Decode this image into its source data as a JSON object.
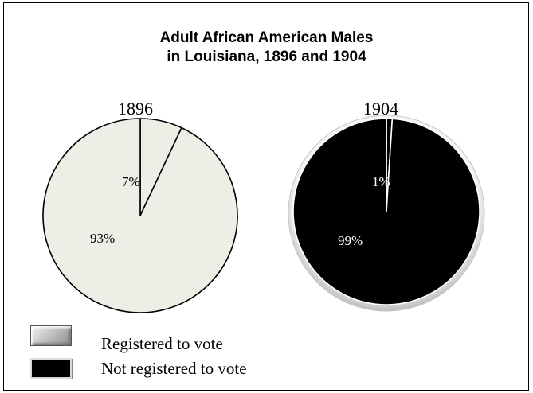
{
  "chart_data": [
    {
      "type": "pie",
      "title": "Adult African American Males\nin Louisiana, 1896 and 1904",
      "subtitle": "1896",
      "categories": [
        "Registered to vote",
        "Not registered to vote"
      ],
      "values": [
        7,
        93
      ],
      "labels": [
        "7%",
        "93%"
      ],
      "colors": [
        "#eeeee6",
        "#eeeee6"
      ],
      "slice_stroke": "#000000",
      "start_angle_deg": 0,
      "direction": "clockwise"
    },
    {
      "type": "pie",
      "title": "Adult African American Males\nin Louisiana, 1896 and 1904",
      "subtitle": "1904",
      "categories": [
        "Registered to vote",
        "Not registered to vote"
      ],
      "values": [
        1,
        99
      ],
      "labels": [
        "1%",
        "99%"
      ],
      "colors": [
        "#000000",
        "#000000"
      ],
      "slice_stroke": "#ffffff",
      "start_angle_deg": 0,
      "direction": "clockwise"
    }
  ],
  "title_line1": "Adult African American Males",
  "title_line2": "in Louisiana, 1896 and 1904",
  "year_1896": "1896",
  "year_1904": "1904",
  "legend": [
    {
      "label": "Registered to vote",
      "swatch": "gray-gradient"
    },
    {
      "label": "Not registered to vote",
      "swatch": "#000000"
    }
  ]
}
